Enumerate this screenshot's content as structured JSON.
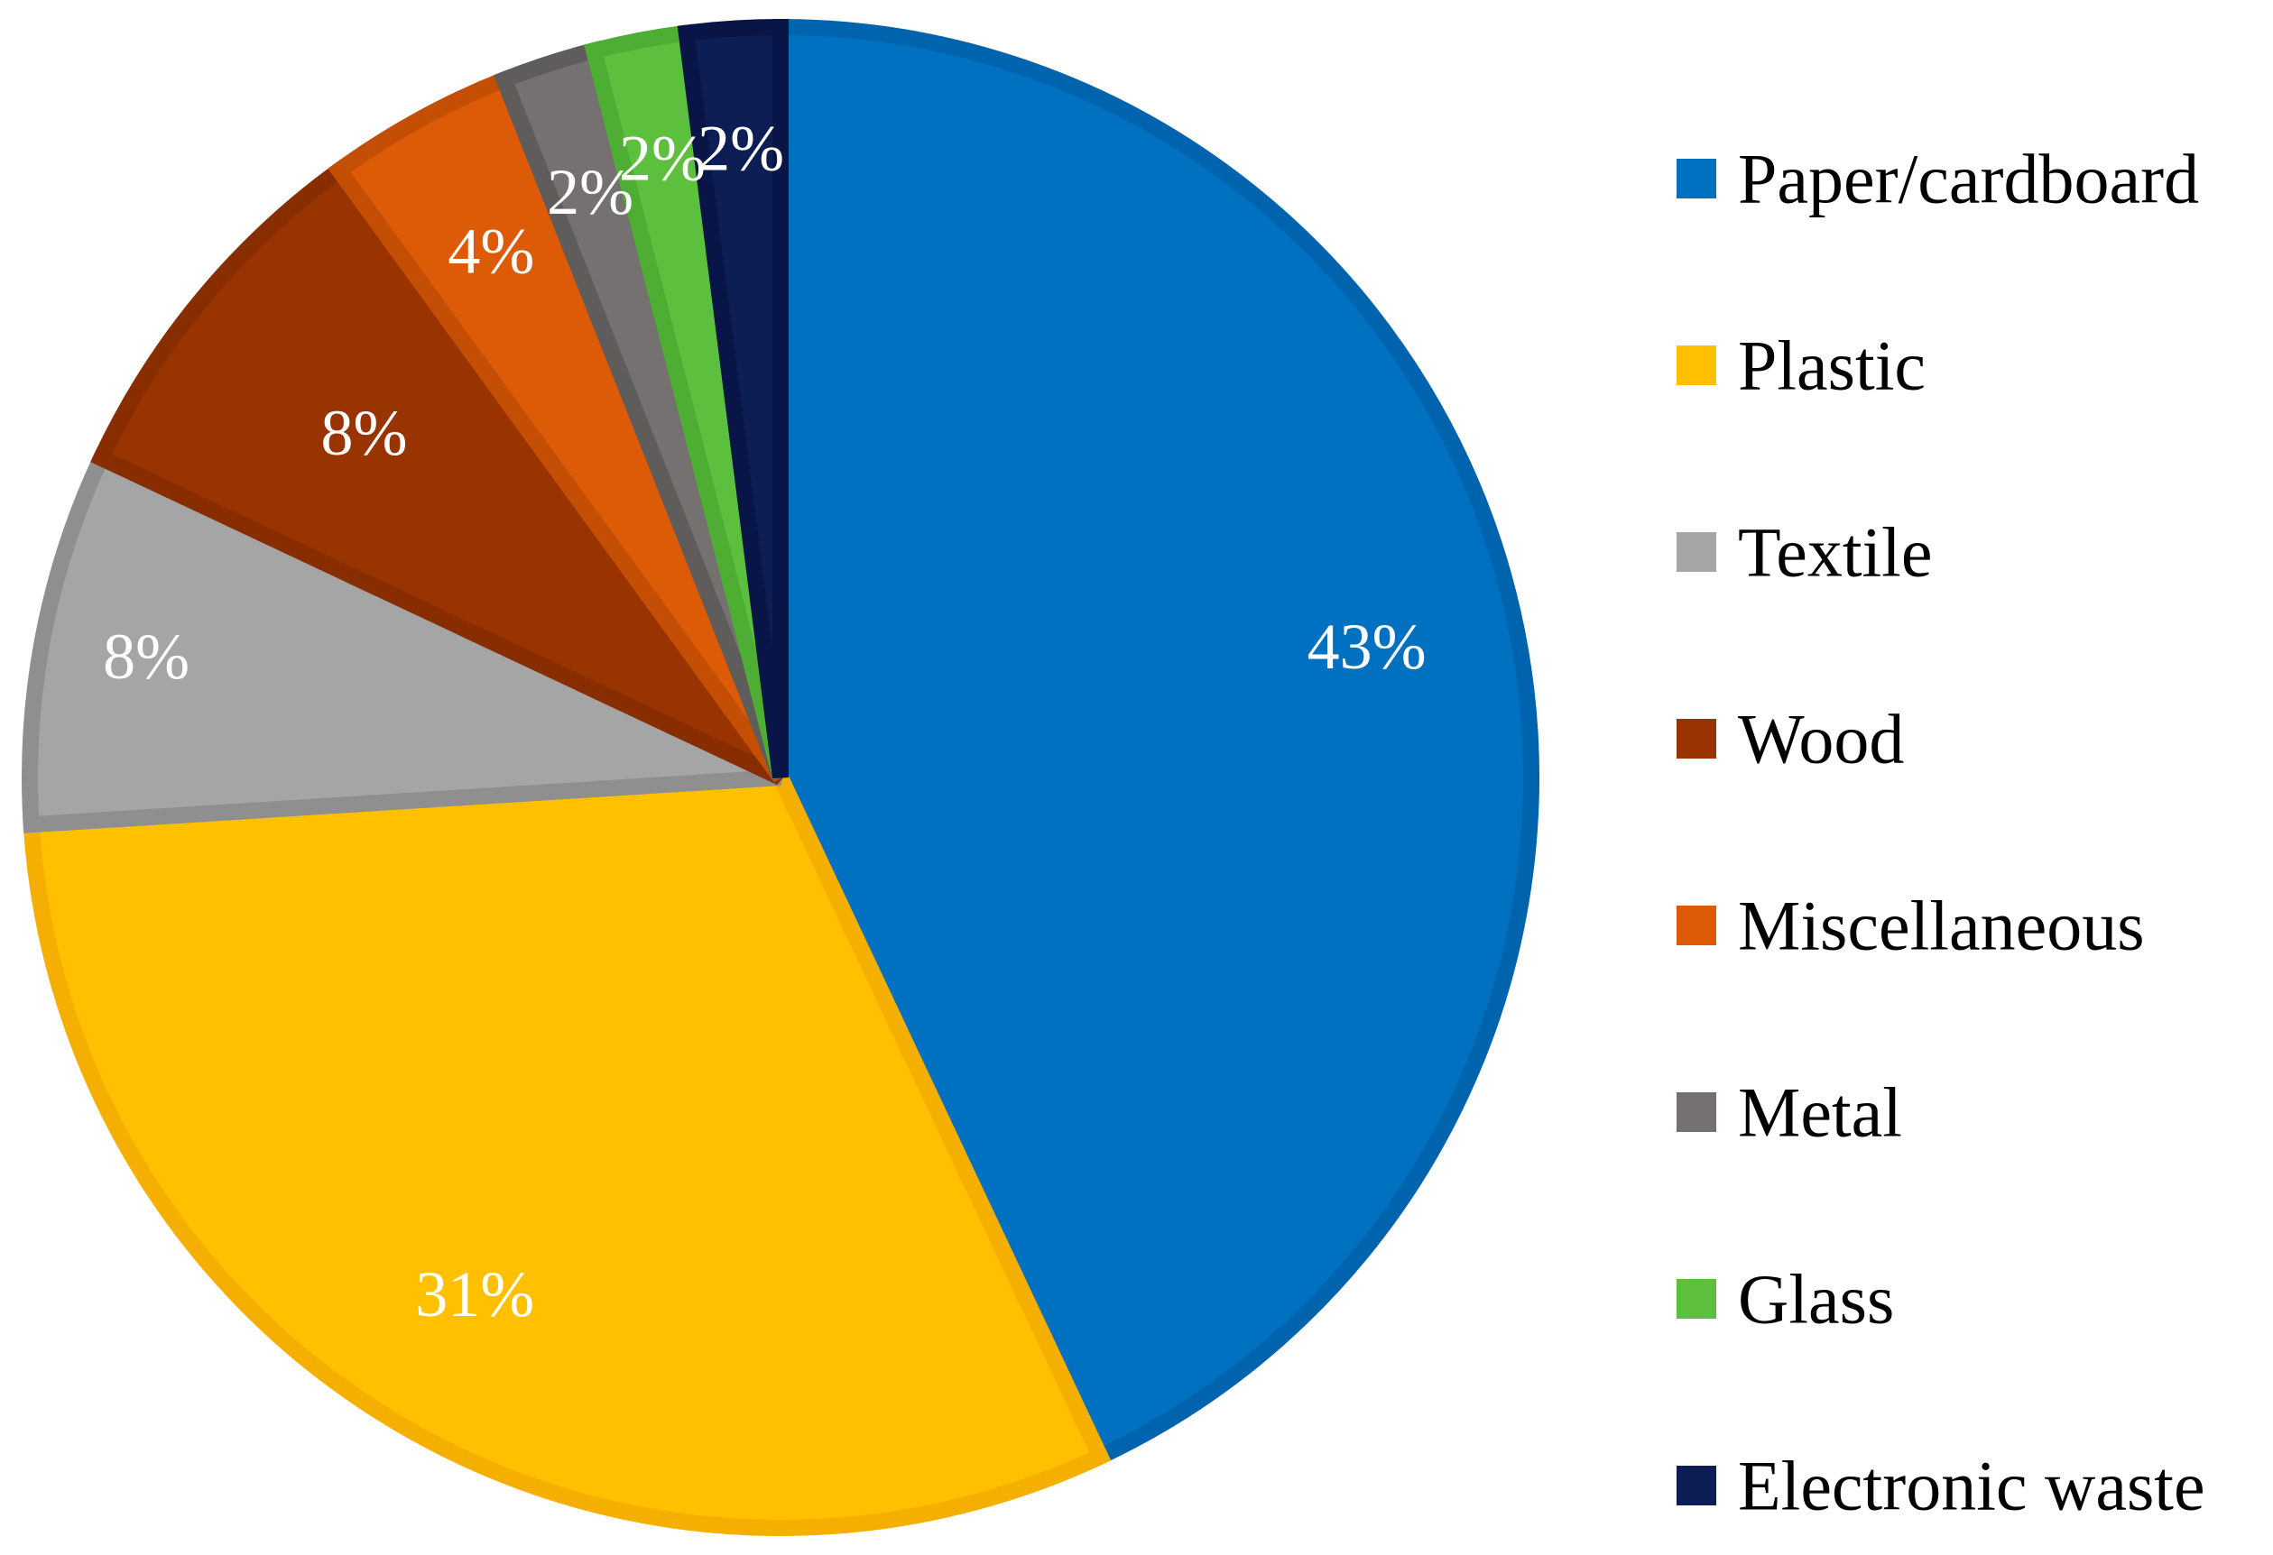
{
  "chart_data": {
    "type": "pie",
    "title": "",
    "legend_position": "right",
    "slices": [
      {
        "label": "Paper/cardboard",
        "value": 43,
        "display": "43%",
        "color": "#0070C0",
        "edge": "#0063AE"
      },
      {
        "label": "Plastic",
        "value": 31,
        "display": "31%",
        "color": "#FFC000",
        "edge": "#F5AF00"
      },
      {
        "label": "Textile",
        "value": 8,
        "display": "8%",
        "color": "#A5A5A5",
        "edge": "#8F8F8F"
      },
      {
        "label": "Wood",
        "value": 8,
        "display": "8%",
        "color": "#993300",
        "edge": "#872D00"
      },
      {
        "label": "Miscellaneous",
        "value": 4,
        "display": "4%",
        "color": "#DD5A06",
        "edge": "#C44E03"
      },
      {
        "label": "Metal",
        "value": 2,
        "display": "2%",
        "color": "#757171",
        "edge": "#5F5C5C"
      },
      {
        "label": "Glass",
        "value": 2,
        "display": "2%",
        "color": "#5CBF3E",
        "edge": "#4EAD33"
      },
      {
        "label": "Electronic waste",
        "value": 2,
        "display": "2%",
        "color": "#0D1E55",
        "edge": "#081546"
      }
    ]
  }
}
